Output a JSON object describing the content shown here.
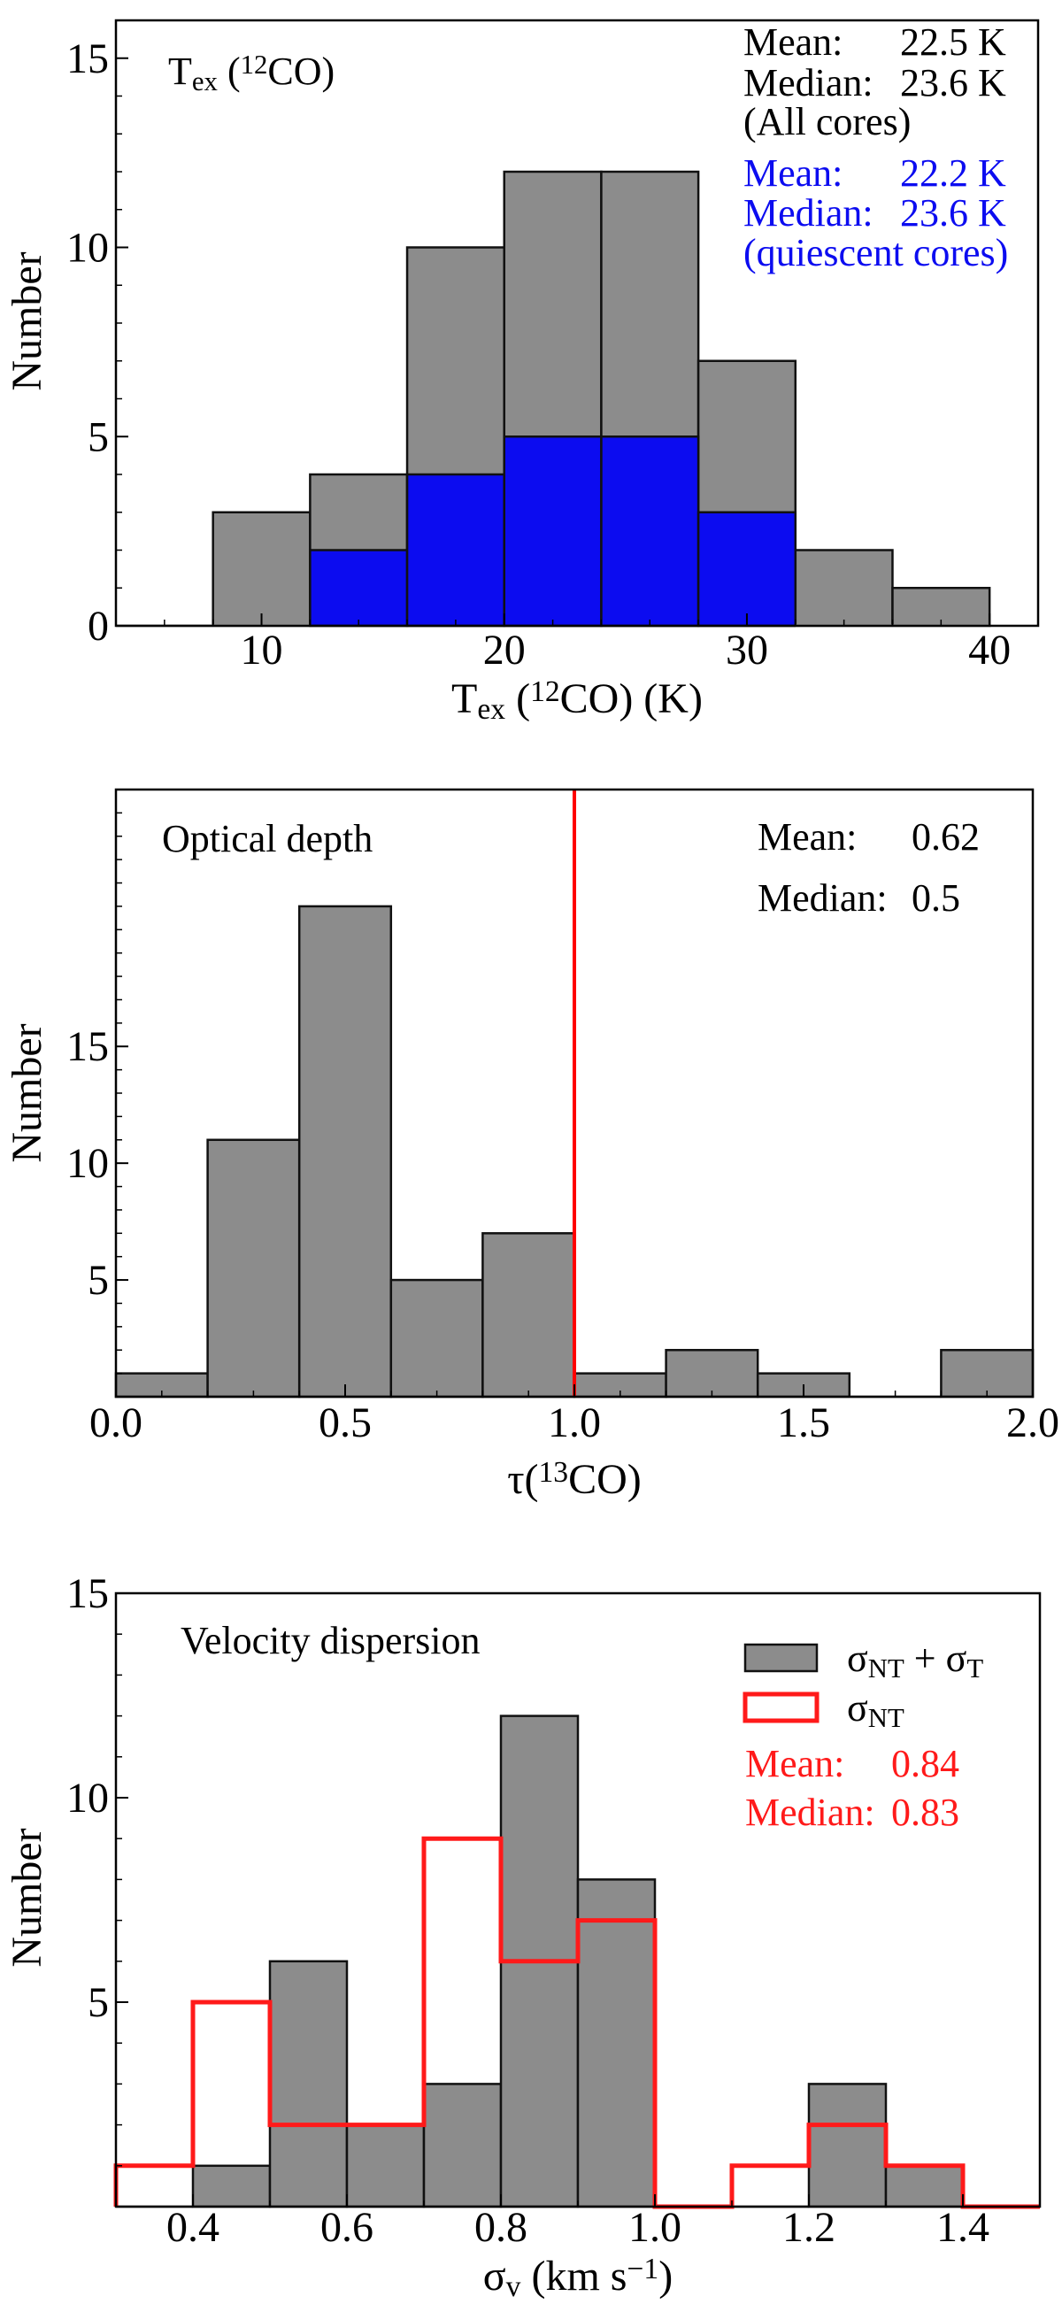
{
  "chart_data": [
    {
      "type": "bar",
      "variant": "stacked-histogram",
      "xlabel": [
        [
          "T",
          ""
        ],
        [
          "ex",
          "sub"
        ],
        [
          " (",
          ""
        ],
        [
          "12",
          "sup"
        ],
        [
          "CO) (K)",
          ""
        ]
      ],
      "ylabel": "Number",
      "xlim": [
        4,
        42
      ],
      "ylim": [
        0,
        16
      ],
      "xticks": [
        10,
        20,
        30,
        40
      ],
      "xtick_labels": [
        "10",
        "20",
        "30",
        "40"
      ],
      "xminor_step": 2,
      "yticks": [
        0,
        5,
        10,
        15
      ],
      "ytick_labels": [
        "0",
        "5",
        "10",
        "15"
      ],
      "yminor_step": 1,
      "bin_edges": [
        4,
        8,
        12,
        16,
        20,
        24,
        28,
        32,
        36,
        40
      ],
      "series": [
        {
          "values": [
            0,
            3,
            4,
            10,
            12,
            12,
            7,
            2,
            1
          ],
          "color": "#8c8c8c"
        },
        {
          "values": [
            0,
            0,
            2,
            4,
            5,
            5,
            3,
            0,
            0
          ],
          "color": "#0c0cf0"
        }
      ],
      "annotation": [
        [
          "T",
          ""
        ],
        [
          "ex",
          "sub"
        ],
        [
          " (",
          ""
        ],
        [
          "12",
          "sup"
        ],
        [
          "CO)",
          ""
        ]
      ],
      "stats": [
        {
          "label": "Mean:",
          "value": "22.5 K",
          "color": "#000000"
        },
        {
          "label": "Median:",
          "value": "23.6 K",
          "color": "#000000"
        },
        {
          "label": "(All cores)",
          "value": "",
          "color": "#000000"
        },
        {
          "label": "Mean:",
          "value": "22.2 K",
          "color": "#0c0cf0"
        },
        {
          "label": "Median:",
          "value": "23.6 K",
          "color": "#0c0cf0"
        },
        {
          "label": "(quiescent cores)",
          "value": "",
          "color": "#0c0cf0"
        }
      ],
      "grid": false
    },
    {
      "type": "bar",
      "variant": "histogram",
      "xlabel": [
        [
          "τ",
          ""
        ],
        [
          "(",
          ""
        ],
        [
          "13",
          "sup"
        ],
        [
          "CO)",
          ""
        ]
      ],
      "ylabel": "Number",
      "xlim": [
        0,
        2
      ],
      "ylim": [
        0,
        26
      ],
      "xticks": [
        0,
        0.5,
        1.0,
        1.5,
        2.0
      ],
      "xtick_labels": [
        "0.0",
        "0.5",
        "1.0",
        "1.5",
        "2.0"
      ],
      "xminor_step": 0.1,
      "yticks": [
        5,
        10,
        15
      ],
      "ytick_labels": [
        "5",
        "10",
        "15"
      ],
      "yminor_step": 1,
      "bin_edges": [
        0,
        0.2,
        0.4,
        0.6,
        0.8,
        1.0,
        1.2,
        1.4,
        1.6,
        1.8,
        2.0
      ],
      "series": [
        {
          "values": [
            1,
            11,
            21,
            5,
            7,
            1,
            2,
            1,
            0,
            2
          ],
          "color": "#8c8c8c"
        }
      ],
      "vline": {
        "x": 1.0,
        "color": "#ff0000"
      },
      "annotation": [
        [
          "Optical depth",
          ""
        ]
      ],
      "stats": [
        {
          "label": "Mean:",
          "value": "0.62",
          "color": "#000000"
        },
        {
          "label": "Median:",
          "value": "0.5",
          "color": "#000000"
        }
      ],
      "grid": false
    },
    {
      "type": "bar",
      "variant": "histogram-with-step",
      "xlabel": [
        [
          "σ",
          ""
        ],
        [
          "v",
          "sub"
        ],
        [
          " (km s",
          ""
        ],
        [
          "−1",
          "sup"
        ],
        [
          ")",
          ""
        ]
      ],
      "ylabel": "Number",
      "xlim": [
        0.3,
        1.5
      ],
      "ylim": [
        0,
        15
      ],
      "xticks": [
        0.4,
        0.6,
        0.8,
        1.0,
        1.2,
        1.4
      ],
      "xtick_labels": [
        "0.4",
        "0.6",
        "0.8",
        "1.0",
        "1.2",
        "1.4"
      ],
      "xminor_step": 0.1,
      "yticks": [
        5,
        10,
        15
      ],
      "ytick_labels": [
        "5",
        "10",
        "15"
      ],
      "yminor_step": 1,
      "bin_edges": [
        0.3,
        0.4,
        0.5,
        0.6,
        0.7,
        0.8,
        0.9,
        1.0,
        1.1,
        1.2,
        1.3,
        1.4,
        1.5
      ],
      "series": [
        {
          "name": [
            [
              "σ",
              ""
            ],
            [
              "NT",
              "sub"
            ],
            [
              " + σ",
              ""
            ],
            [
              "T",
              "sub"
            ]
          ],
          "style": "filled",
          "values": [
            0,
            1,
            6,
            2,
            3,
            12,
            8,
            0,
            0,
            3,
            1,
            0
          ],
          "color": "#8c8c8c"
        },
        {
          "name": [
            [
              "σ",
              ""
            ],
            [
              "NT",
              "sub"
            ]
          ],
          "style": "step",
          "values": [
            1,
            5,
            2,
            2,
            9,
            6,
            7,
            0,
            1,
            2,
            1,
            0
          ],
          "color": "#ff1a1a"
        }
      ],
      "legend": "top-right",
      "annotation": [
        [
          "Velocity dispersion",
          ""
        ]
      ],
      "stats": [
        {
          "label": "Mean:",
          "value": "0.84",
          "color": "#ff1a1a"
        },
        {
          "label": "Median:",
          "value": "0.83",
          "color": "#ff1a1a"
        }
      ],
      "grid": false
    }
  ]
}
